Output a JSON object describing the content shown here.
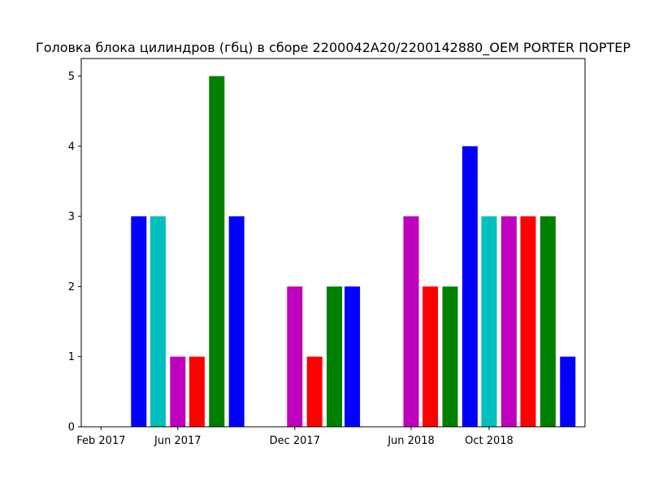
{
  "chart_data": {
    "type": "bar",
    "title": "Головка блока цилиндров (гбц) в сборе 2200042A20/2200142880_OEM PORTER ПОРТЕР",
    "xlabel": "",
    "ylabel": "",
    "x_axis_type": "date",
    "xlim": [
      "2017-01-01",
      "2019-02-28"
    ],
    "ylim": [
      0,
      5.25
    ],
    "grid": false,
    "x_tick_labels": [
      {
        "date": "2017-02-01",
        "label": "Feb 2017"
      },
      {
        "date": "2017-06-01",
        "label": "Jun 2017"
      },
      {
        "date": "2017-12-01",
        "label": "Dec 2017"
      },
      {
        "date": "2018-06-01",
        "label": "Jun 2018"
      },
      {
        "date": "2018-10-01",
        "label": "Oct 2018"
      }
    ],
    "y_ticks": [
      0,
      1,
      2,
      3,
      4,
      5
    ],
    "bars": [
      {
        "date": "2017-04-01",
        "value": 3,
        "color": "#0000ff"
      },
      {
        "date": "2017-05-01",
        "value": 3,
        "color": "#00bfbf"
      },
      {
        "date": "2017-06-01",
        "value": 1,
        "color": "#bf00bf"
      },
      {
        "date": "2017-07-01",
        "value": 1,
        "color": "#ff0000"
      },
      {
        "date": "2017-08-01",
        "value": 5,
        "color": "#008000"
      },
      {
        "date": "2017-09-01",
        "value": 3,
        "color": "#0000ff"
      },
      {
        "date": "2017-12-01",
        "value": 2,
        "color": "#bf00bf"
      },
      {
        "date": "2018-01-01",
        "value": 1,
        "color": "#ff0000"
      },
      {
        "date": "2018-02-01",
        "value": 2,
        "color": "#008000"
      },
      {
        "date": "2018-03-01",
        "value": 2,
        "color": "#0000ff"
      },
      {
        "date": "2018-06-01",
        "value": 3,
        "color": "#bf00bf"
      },
      {
        "date": "2018-07-01",
        "value": 2,
        "color": "#ff0000"
      },
      {
        "date": "2018-08-01",
        "value": 2,
        "color": "#008000"
      },
      {
        "date": "2018-09-01",
        "value": 4,
        "color": "#0000ff"
      },
      {
        "date": "2018-10-01",
        "value": 3,
        "color": "#00bfbf"
      },
      {
        "date": "2018-11-01",
        "value": 3,
        "color": "#bf00bf"
      },
      {
        "date": "2018-12-01",
        "value": 3,
        "color": "#ff0000"
      },
      {
        "date": "2019-01-01",
        "value": 3,
        "color": "#008000"
      },
      {
        "date": "2019-02-01",
        "value": 1,
        "color": "#0000ff"
      }
    ]
  }
}
